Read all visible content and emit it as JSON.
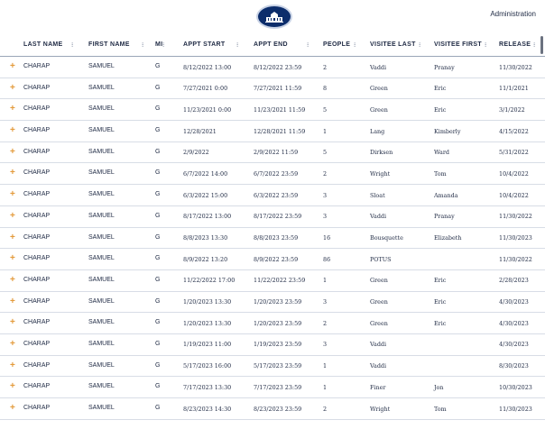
{
  "header": {
    "admin_label": "Administration",
    "seal_icon": "white-house-seal-icon"
  },
  "columns": [
    {
      "key": "last",
      "label": "LAST NAME"
    },
    {
      "key": "first",
      "label": "FIRST NAME"
    },
    {
      "key": "mi",
      "label": "MI"
    },
    {
      "key": "start",
      "label": "APPT START"
    },
    {
      "key": "end",
      "label": "APPT END"
    },
    {
      "key": "people",
      "label": "PEOPLE"
    },
    {
      "key": "vlast",
      "label": "VISITEE LAST"
    },
    {
      "key": "vfirst",
      "label": "VISITEE FIRST"
    },
    {
      "key": "release",
      "label": "RELEASE"
    }
  ],
  "sort_glyph": "⁝",
  "expand_glyph": "+",
  "colors": {
    "accent": "#e39a3b",
    "navy": "#0c2d6b",
    "text": "#1f2a44"
  },
  "rows": [
    {
      "last": "CHARAP",
      "first": "SAMUEL",
      "mi": "G",
      "start": "8/12/2022 13:00",
      "end": "8/12/2022 23:59",
      "people": "2",
      "vlast": "Vaddi",
      "vfirst": "Pranay",
      "release": "11/30/2022"
    },
    {
      "last": "CHARAP",
      "first": "SAMUEL",
      "mi": "G",
      "start": "7/27/2021 0:00",
      "end": "7/27/2021 11:59",
      "people": "8",
      "vlast": "Green",
      "vfirst": "Eric",
      "release": "11/1/2021"
    },
    {
      "last": "CHARAP",
      "first": "SAMUEL",
      "mi": "G",
      "start": "11/23/2021 0:00",
      "end": "11/23/2021 11:59",
      "people": "5",
      "vlast": "Green",
      "vfirst": "Eric",
      "release": "3/1/2022"
    },
    {
      "last": "CHARAP",
      "first": "SAMUEL",
      "mi": "G",
      "start": "12/28/2021",
      "end": "12/28/2021 11:59",
      "people": "1",
      "vlast": "Lang",
      "vfirst": "Kimberly",
      "release": "4/15/2022"
    },
    {
      "last": "CHARAP",
      "first": "SAMUEL",
      "mi": "G",
      "start": "2/9/2022",
      "end": "2/9/2022 11:59",
      "people": "5",
      "vlast": "Dirksen",
      "vfirst": "Ward",
      "release": "5/31/2022"
    },
    {
      "last": "CHARAP",
      "first": "SAMUEL",
      "mi": "G",
      "start": "6/7/2022 14:00",
      "end": "6/7/2022 23:59",
      "people": "2",
      "vlast": "Wright",
      "vfirst": "Tom",
      "release": "10/4/2022"
    },
    {
      "last": "CHARAP",
      "first": "SAMUEL",
      "mi": "G",
      "start": "6/3/2022 15:00",
      "end": "6/3/2022 23:59",
      "people": "3",
      "vlast": "Sloat",
      "vfirst": "Amanda",
      "release": "10/4/2022"
    },
    {
      "last": "CHARAP",
      "first": "SAMUEL",
      "mi": "G",
      "start": "8/17/2022 13:00",
      "end": "8/17/2022 23:59",
      "people": "3",
      "vlast": "Vaddi",
      "vfirst": "Pranay",
      "release": "11/30/2022"
    },
    {
      "last": "CHARAP",
      "first": "SAMUEL",
      "mi": "G",
      "start": "8/8/2023 13:30",
      "end": "8/8/2023 23:59",
      "people": "16",
      "vlast": "Bousquette",
      "vfirst": "Elizabeth",
      "release": "11/30/2023"
    },
    {
      "last": "CHARAP",
      "first": "SAMUEL",
      "mi": "G",
      "start": "8/9/2022 13:20",
      "end": "8/9/2022 23:59",
      "people": "86",
      "vlast": "POTUS",
      "vfirst": "",
      "release": "11/30/2022"
    },
    {
      "last": "CHARAP",
      "first": "SAMUEL",
      "mi": "G",
      "start": "11/22/2022 17:00",
      "end": "11/22/2022 23:59",
      "people": "1",
      "vlast": "Green",
      "vfirst": "Eric",
      "release": "2/28/2023"
    },
    {
      "last": "CHARAP",
      "first": "SAMUEL",
      "mi": "G",
      "start": "1/20/2023 13:30",
      "end": "1/20/2023 23:59",
      "people": "3",
      "vlast": "Green",
      "vfirst": "Eric",
      "release": "4/30/2023"
    },
    {
      "last": "CHARAP",
      "first": "SAMUEL",
      "mi": "G",
      "start": "1/20/2023 13:30",
      "end": "1/20/2023 23:59",
      "people": "2",
      "vlast": "Green",
      "vfirst": "Eric",
      "release": "4/30/2023"
    },
    {
      "last": "CHARAP",
      "first": "SAMUEL",
      "mi": "G",
      "start": "1/19/2023 11:00",
      "end": "1/19/2023 23:59",
      "people": "3",
      "vlast": "Vaddi",
      "vfirst": "",
      "release": "4/30/2023"
    },
    {
      "last": "CHARAP",
      "first": "SAMUEL",
      "mi": "G",
      "start": "5/17/2023 16:00",
      "end": "5/17/2023 23:59",
      "people": "1",
      "vlast": "Vaddi",
      "vfirst": "",
      "release": "8/30/2023"
    },
    {
      "last": "CHARAP",
      "first": "SAMUEL",
      "mi": "G",
      "start": "7/17/2023 13:30",
      "end": "7/17/2023 23:59",
      "people": "1",
      "vlast": "Finer",
      "vfirst": "Jon",
      "release": "10/30/2023"
    },
    {
      "last": "CHARAP",
      "first": "SAMUEL",
      "mi": "G",
      "start": "8/23/2023 14:30",
      "end": "8/23/2023 23:59",
      "people": "2",
      "vlast": "Wright",
      "vfirst": "Tom",
      "release": "11/30/2023"
    }
  ]
}
